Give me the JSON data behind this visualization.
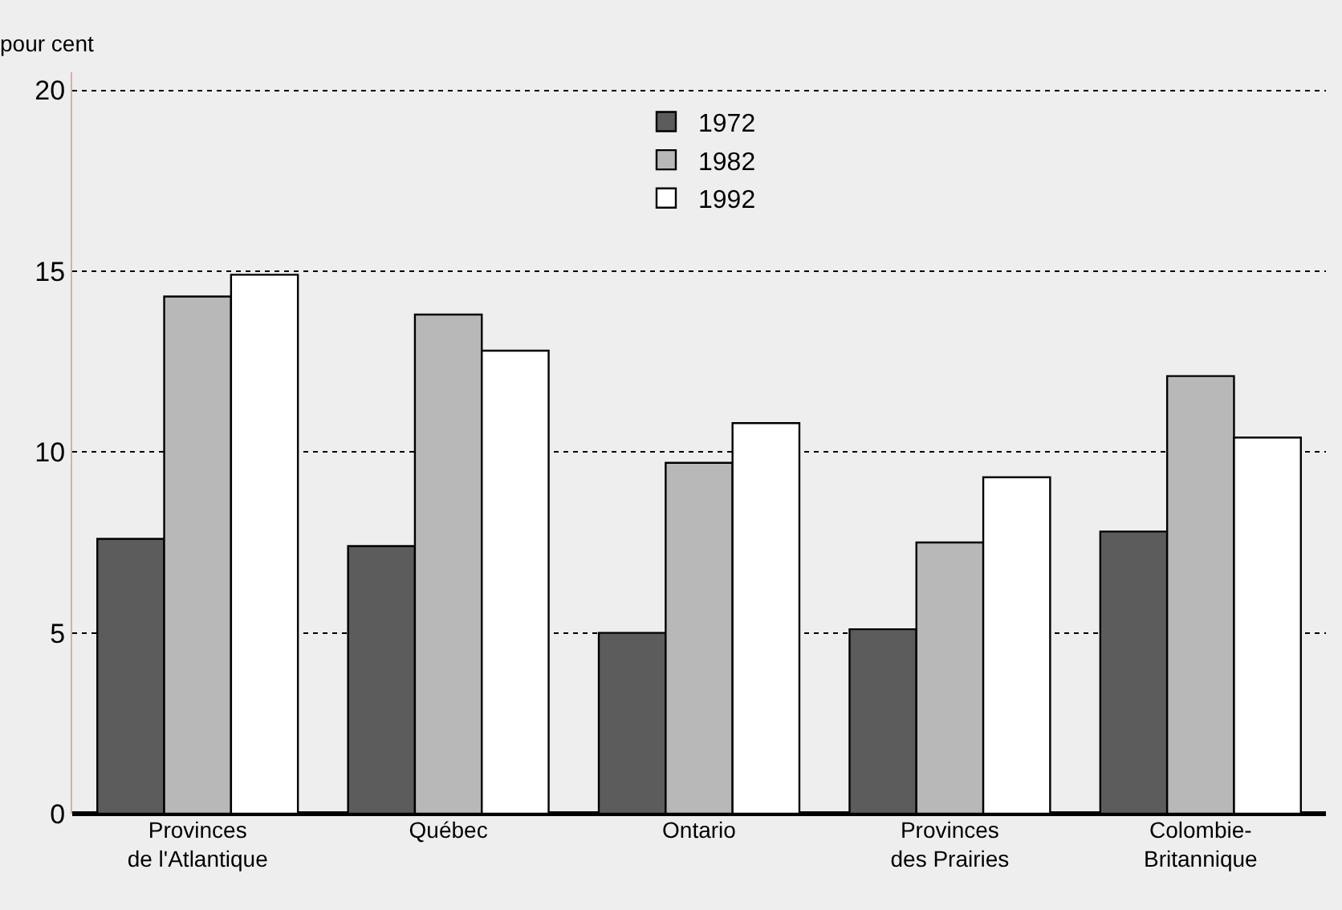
{
  "chart_data": {
    "type": "bar",
    "ylabel": "pour cent",
    "categories": [
      "Provinces\nde l'Atlantique",
      "Québec",
      "Ontario",
      "Provinces\ndes Prairies",
      "Colombie-\nBritannique"
    ],
    "series": [
      {
        "name": "1972",
        "color": "#5c5c5c",
        "values": [
          7.6,
          7.4,
          5.0,
          5.1,
          7.8
        ]
      },
      {
        "name": "1982",
        "color": "#b8b8b8",
        "values": [
          14.3,
          13.8,
          9.7,
          7.5,
          12.1
        ]
      },
      {
        "name": "1992",
        "color": "#ffffff",
        "values": [
          14.9,
          12.8,
          10.8,
          9.3,
          10.4
        ]
      }
    ],
    "ylim": [
      0,
      20.5
    ],
    "yticks": [
      0,
      5,
      10,
      15,
      20
    ],
    "grid": "y",
    "legend": "top"
  }
}
